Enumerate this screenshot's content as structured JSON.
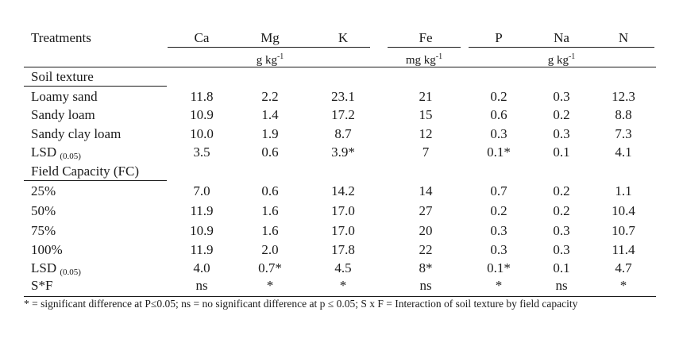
{
  "header": {
    "treatments": "Treatments",
    "columns": [
      "Ca",
      "Mg",
      "K",
      "Fe",
      "P",
      "Na",
      "N"
    ],
    "units": {
      "gkg1": {
        "base": "g kg",
        "exp": "-1"
      },
      "mgkg": {
        "base": "mg kg",
        "exp": "-1"
      },
      "gkg2": {
        "base": "g kg",
        "exp": "-1"
      }
    }
  },
  "soil_texture": {
    "title": "Soil texture",
    "rows": [
      {
        "label": "Loamy sand",
        "values": [
          "11.8",
          "2.2",
          "23.1",
          "21",
          "0.2",
          "0.3",
          "12.3"
        ]
      },
      {
        "label": "Sandy loam",
        "values": [
          "10.9",
          "1.4",
          "17.2",
          "15",
          "0.6",
          "0.2",
          "8.8"
        ]
      },
      {
        "label": "Sandy clay loam",
        "values": [
          "10.0",
          "1.9",
          "8.7",
          "12",
          "0.3",
          "0.3",
          "7.3"
        ]
      }
    ],
    "lsd": {
      "label": "LSD",
      "sub": "(0.05)",
      "values": [
        "3.5",
        "0.6",
        "3.9*",
        "7",
        "0.1*",
        "0.1",
        "4.1"
      ]
    }
  },
  "field_capacity": {
    "title": "Field Capacity (FC)",
    "rows": [
      {
        "label": "25%",
        "values": [
          "7.0",
          "0.6",
          "14.2",
          "14",
          "0.7",
          "0.2",
          "1.1"
        ]
      },
      {
        "label": "50%",
        "values": [
          "11.9",
          "1.6",
          "17.0",
          "27",
          "0.2",
          "0.2",
          "10.4"
        ]
      },
      {
        "label": "75%",
        "values": [
          "10.9",
          "1.6",
          "17.0",
          "20",
          "0.3",
          "0.3",
          "10.7"
        ]
      },
      {
        "label": "100%",
        "values": [
          "11.9",
          "2.0",
          "17.8",
          "22",
          "0.3",
          "0.3",
          "11.4"
        ]
      }
    ],
    "lsd": {
      "label": "LSD",
      "sub": "(0.05)",
      "values": [
        "4.0",
        "0.7*",
        "4.5",
        "8*",
        "0.1*",
        "0.1",
        "4.7"
      ]
    },
    "interaction": {
      "label": "S*F",
      "values": [
        "ns",
        "*",
        "*",
        "ns",
        "*",
        "ns",
        "*"
      ]
    }
  },
  "footnote": "* = significant difference at P≤0.05; ns = no significant difference at p ≤ 0.05; S x F = Interaction of soil texture by field capacity"
}
